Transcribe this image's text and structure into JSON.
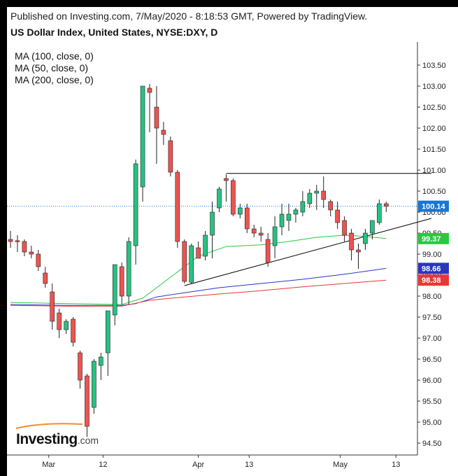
{
  "header": {
    "published": "Published on Investing.com, 7/May/2020 - 8:18:53 GMT, Powered by TradingView.",
    "title": "US Dollar Index, United States, NYSE:DXY, D"
  },
  "indicators": [
    {
      "label": "MA (100, close, 0)"
    },
    {
      "label": "MA (50, close, 0)"
    },
    {
      "label": "MA (200, close, 0)"
    }
  ],
  "logo": {
    "main": "Investing",
    "suffix": ".com"
  },
  "chart_data": {
    "type": "candlestick",
    "symbol": "DXY",
    "ylim": [
      94.25,
      103.75
    ],
    "y_ticks": [
      "94.50",
      "95.00",
      "95.50",
      "96.00",
      "96.50",
      "97.00",
      "97.50",
      "98.00",
      "98.50",
      "99.00",
      "99.50",
      "100.00",
      "100.50",
      "101.00",
      "101.50",
      "102.00",
      "102.50",
      "103.00",
      "103.50"
    ],
    "x_ticks": [
      "Mar",
      "12",
      "Apr",
      "13",
      "May",
      "13"
    ],
    "candles": [
      {
        "o": 99.35,
        "h": 99.55,
        "l": 99.15,
        "c": 99.3
      },
      {
        "o": 99.32,
        "h": 99.45,
        "l": 99.05,
        "c": 99.3
      },
      {
        "o": 99.3,
        "h": 99.35,
        "l": 98.95,
        "c": 99.05
      },
      {
        "o": 99.05,
        "h": 99.2,
        "l": 98.9,
        "c": 99.0
      },
      {
        "o": 99.0,
        "h": 99.1,
        "l": 98.6,
        "c": 98.7
      },
      {
        "o": 98.55,
        "h": 98.7,
        "l": 98.2,
        "c": 98.3
      },
      {
        "o": 98.1,
        "h": 98.3,
        "l": 97.2,
        "c": 97.4
      },
      {
        "o": 97.6,
        "h": 97.7,
        "l": 97.0,
        "c": 97.2
      },
      {
        "o": 97.2,
        "h": 97.45,
        "l": 97.1,
        "c": 97.4
      },
      {
        "o": 97.45,
        "h": 97.5,
        "l": 96.8,
        "c": 96.9
      },
      {
        "o": 96.65,
        "h": 96.7,
        "l": 95.8,
        "c": 96.0
      },
      {
        "o": 96.1,
        "h": 96.15,
        "l": 94.65,
        "c": 94.9
      },
      {
        "o": 95.35,
        "h": 96.5,
        "l": 95.2,
        "c": 96.45
      },
      {
        "o": 96.35,
        "h": 96.65,
        "l": 96.0,
        "c": 96.55
      },
      {
        "o": 96.65,
        "h": 97.6,
        "l": 96.1,
        "c": 97.65
      },
      {
        "o": 97.55,
        "h": 98.7,
        "l": 97.3,
        "c": 98.75
      },
      {
        "o": 98.7,
        "h": 98.8,
        "l": 97.8,
        "c": 98.0
      },
      {
        "o": 98.0,
        "h": 99.4,
        "l": 97.8,
        "c": 99.3
      },
      {
        "o": 99.2,
        "h": 101.25,
        "l": 98.75,
        "c": 101.15
      },
      {
        "o": 100.6,
        "h": 103.0,
        "l": 100.25,
        "c": 103.0
      },
      {
        "o": 102.95,
        "h": 103.05,
        "l": 101.9,
        "c": 102.85
      },
      {
        "o": 102.5,
        "h": 103.0,
        "l": 101.15,
        "c": 102.0
      },
      {
        "o": 101.95,
        "h": 102.15,
        "l": 101.6,
        "c": 101.85
      },
      {
        "o": 101.7,
        "h": 101.8,
        "l": 100.85,
        "c": 100.95
      },
      {
        "o": 100.95,
        "h": 101.0,
        "l": 99.15,
        "c": 99.3
      },
      {
        "o": 99.3,
        "h": 99.35,
        "l": 98.3,
        "c": 98.35
      },
      {
        "o": 98.33,
        "h": 99.25,
        "l": 98.3,
        "c": 99.2
      },
      {
        "o": 99.15,
        "h": 99.3,
        "l": 98.9,
        "c": 98.9
      },
      {
        "o": 98.95,
        "h": 99.55,
        "l": 98.85,
        "c": 99.45
      },
      {
        "o": 99.45,
        "h": 100.25,
        "l": 98.9,
        "c": 100.0
      },
      {
        "o": 100.1,
        "h": 100.6,
        "l": 100.0,
        "c": 100.55
      },
      {
        "o": 100.8,
        "h": 100.9,
        "l": 100.25,
        "c": 100.75
      },
      {
        "o": 100.75,
        "h": 100.8,
        "l": 99.9,
        "c": 99.95
      },
      {
        "o": 99.95,
        "h": 100.2,
        "l": 99.85,
        "c": 100.1
      },
      {
        "o": 100.1,
        "h": 100.2,
        "l": 99.5,
        "c": 99.6
      },
      {
        "o": 99.6,
        "h": 99.7,
        "l": 99.4,
        "c": 99.5
      },
      {
        "o": 99.5,
        "h": 99.65,
        "l": 99.3,
        "c": 99.45
      },
      {
        "o": 99.35,
        "h": 99.5,
        "l": 98.7,
        "c": 98.8
      },
      {
        "o": 99.2,
        "h": 99.9,
        "l": 98.9,
        "c": 99.65
      },
      {
        "o": 99.65,
        "h": 100.2,
        "l": 99.45,
        "c": 99.95
      },
      {
        "o": 99.8,
        "h": 100.2,
        "l": 99.55,
        "c": 99.95
      },
      {
        "o": 99.95,
        "h": 100.1,
        "l": 99.75,
        "c": 100.05
      },
      {
        "o": 100.0,
        "h": 100.5,
        "l": 99.9,
        "c": 100.25
      },
      {
        "o": 100.2,
        "h": 100.55,
        "l": 100.1,
        "c": 100.45
      },
      {
        "o": 100.45,
        "h": 100.65,
        "l": 100.05,
        "c": 100.5
      },
      {
        "o": 100.5,
        "h": 100.85,
        "l": 100.1,
        "c": 100.3
      },
      {
        "o": 100.25,
        "h": 100.3,
        "l": 99.9,
        "c": 100.05
      },
      {
        "o": 100.05,
        "h": 100.25,
        "l": 99.6,
        "c": 99.75
      },
      {
        "o": 99.8,
        "h": 99.9,
        "l": 99.3,
        "c": 99.45
      },
      {
        "o": 99.5,
        "h": 99.6,
        "l": 98.85,
        "c": 99.1
      },
      {
        "o": 99.1,
        "h": 99.25,
        "l": 98.65,
        "c": 99.05
      },
      {
        "o": 99.25,
        "h": 99.6,
        "l": 99.1,
        "c": 99.5
      },
      {
        "o": 99.5,
        "h": 99.8,
        "l": 99.35,
        "c": 99.8
      },
      {
        "o": 99.75,
        "h": 100.3,
        "l": 99.7,
        "c": 100.2
      },
      {
        "o": 100.2,
        "h": 100.25,
        "l": 100.0,
        "c": 100.14
      }
    ],
    "last_price": {
      "value": 100.14,
      "label": "100.14",
      "color": "#1976d2"
    },
    "moving_averages": [
      {
        "period": 50,
        "color": "#26c940",
        "end_value": 99.37,
        "label": "99.37",
        "points": [
          [
            0,
            97.85
          ],
          [
            8,
            97.82
          ],
          [
            16,
            97.8
          ],
          [
            19,
            97.95
          ],
          [
            23,
            98.45
          ],
          [
            27,
            98.95
          ],
          [
            31,
            99.18
          ],
          [
            36,
            99.22
          ],
          [
            40,
            99.3
          ],
          [
            44,
            99.4
          ],
          [
            48,
            99.45
          ],
          [
            51,
            99.42
          ],
          [
            54,
            99.37
          ]
        ]
      },
      {
        "period": 100,
        "color": "#2b35c2",
        "end_value": 98.66,
        "label": "98.66",
        "points": [
          [
            0,
            97.8
          ],
          [
            8,
            97.78
          ],
          [
            16,
            97.78
          ],
          [
            18,
            97.82
          ],
          [
            21,
            97.98
          ],
          [
            25,
            98.08
          ],
          [
            30,
            98.2
          ],
          [
            36,
            98.3
          ],
          [
            42,
            98.4
          ],
          [
            48,
            98.52
          ],
          [
            54,
            98.66
          ]
        ]
      },
      {
        "period": 200,
        "color": "#e53935",
        "end_value": 98.38,
        "label": "98.38",
        "points": [
          [
            0,
            97.78
          ],
          [
            8,
            97.76
          ],
          [
            16,
            97.76
          ],
          [
            20,
            97.9
          ],
          [
            25,
            97.98
          ],
          [
            30,
            98.05
          ],
          [
            36,
            98.13
          ],
          [
            42,
            98.22
          ],
          [
            48,
            98.3
          ],
          [
            54,
            98.38
          ]
        ]
      }
    ],
    "trendlines": [
      {
        "name": "resistance",
        "color": "#000000",
        "points": [
          [
            31.0,
            100.92
          ],
          [
            60.5,
            100.92
          ]
        ]
      },
      {
        "name": "support",
        "color": "#000000",
        "points": [
          [
            25.0,
            98.25
          ],
          [
            60.5,
            99.85
          ]
        ]
      }
    ],
    "colors": {
      "up": "#26c281",
      "down": "#ef5350",
      "grid": "#e8e8e8"
    }
  }
}
